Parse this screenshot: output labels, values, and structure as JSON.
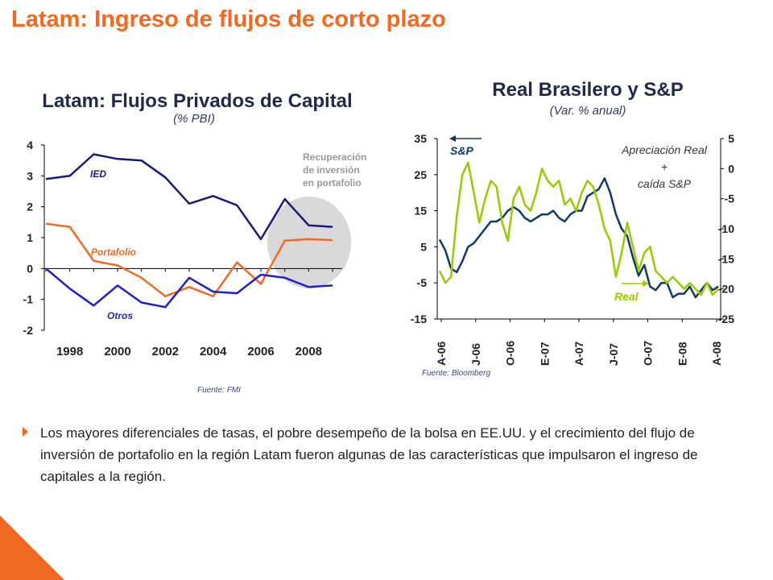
{
  "page": {
    "title": "Latam: Ingreso de flujos de corto plazo",
    "bullet": "Los mayores diferenciales de tasas, el pobre desempeño de la bolsa en EE.UU. y el crecimiento del flujo de inversión de portafolio en la región Latam fueron algunas de las características que impulsaron el ingreso de capitales a la región.",
    "accent_color": "#f26a21"
  },
  "chart_data": [
    {
      "type": "line",
      "title": "Latam: Flujos Privados de Capital",
      "subtitle": "(% PBI)",
      "source": "Fuente: FMI",
      "x": [
        1997,
        1998,
        1999,
        2000,
        2001,
        2002,
        2003,
        2004,
        2005,
        2006,
        2007,
        2008,
        2009
      ],
      "x_ticks": [
        "1998",
        "2000",
        "2002",
        "2004",
        "2006",
        "2008"
      ],
      "ylim": [
        -2,
        4
      ],
      "y_ticks": [
        "4",
        "3",
        "2",
        "1",
        "0",
        "-1",
        "-2"
      ],
      "grid": false,
      "series": [
        {
          "name": "IED",
          "color": "#1a1a7a",
          "values": [
            2.9,
            3.0,
            3.7,
            3.55,
            3.5,
            2.95,
            2.1,
            2.35,
            2.05,
            0.95,
            2.25,
            1.4,
            1.35
          ]
        },
        {
          "name": "Portafolio",
          "color": "#f26a21",
          "values": [
            1.45,
            1.35,
            0.25,
            0.1,
            -0.3,
            -0.9,
            -0.6,
            -0.9,
            0.2,
            -0.5,
            0.9,
            0.95,
            0.92
          ]
        },
        {
          "name": "Otros",
          "color": "#2020c8",
          "values": [
            0.0,
            -0.65,
            -1.2,
            -0.55,
            -1.1,
            -1.25,
            -0.3,
            -0.75,
            -0.8,
            -0.2,
            -0.3,
            -0.6,
            -0.55
          ]
        }
      ],
      "annotation": {
        "lines": [
          "Recuperación",
          "de inversión",
          "en portafolio"
        ],
        "highlight_color": "#d9d9d9"
      }
    },
    {
      "type": "line",
      "title": "Real Brasilero y S&P",
      "subtitle": "(Var. % anual)",
      "source": "Fuente: Bloomberg",
      "x_ticks": [
        "A-06",
        "J-06",
        "O-06",
        "E-07",
        "A-07",
        "J-07",
        "O-07",
        "E-08",
        "A-08"
      ],
      "y_left": {
        "ticks": [
          "35",
          "25",
          "15",
          "5",
          "-5",
          "-15"
        ],
        "ylim": [
          -15,
          35
        ]
      },
      "y_right": {
        "ticks": [
          "5",
          "0",
          "-5",
          "-10",
          "-15",
          "-20",
          "-25"
        ],
        "ylim": [
          -25,
          5
        ]
      },
      "grid": false,
      "series": [
        {
          "name": "S&P",
          "axis": "left",
          "color": "#0e3a66",
          "values": [
            7,
            4,
            -1,
            -2,
            1,
            5,
            6,
            8,
            10,
            12,
            12,
            13,
            15,
            16,
            15,
            13,
            12,
            13,
            14,
            14,
            15,
            13,
            12,
            14,
            15,
            15,
            19,
            20,
            21,
            24,
            20,
            14,
            10,
            8,
            2,
            -3,
            0,
            -6,
            -7,
            -5,
            -5,
            -9,
            -8,
            -8,
            -6,
            -9,
            -7,
            -5,
            -7,
            -6
          ]
        },
        {
          "name": "Real",
          "axis": "right",
          "color": "#99cc00",
          "values": [
            -17,
            -19,
            -18,
            -8,
            -1,
            1,
            -4,
            -9,
            -5,
            -2,
            -3,
            -9,
            -12,
            -5,
            -3,
            -6,
            -7,
            -4,
            0,
            -2,
            -3,
            -2,
            -6,
            -5,
            -7,
            -4,
            -2,
            -3,
            -6,
            -10,
            -12,
            -18,
            -14,
            -9,
            -13,
            -17,
            -14,
            -13,
            -17,
            -18,
            -19,
            -18,
            -19,
            -20,
            -19,
            -20,
            -21,
            -19,
            -21,
            -20
          ]
        }
      ],
      "labels": {
        "left_series": "S&P",
        "right_series": "Real"
      },
      "annotation": {
        "lines": [
          "Apreciación Real",
          "+",
          "caída S&P"
        ]
      }
    }
  ]
}
